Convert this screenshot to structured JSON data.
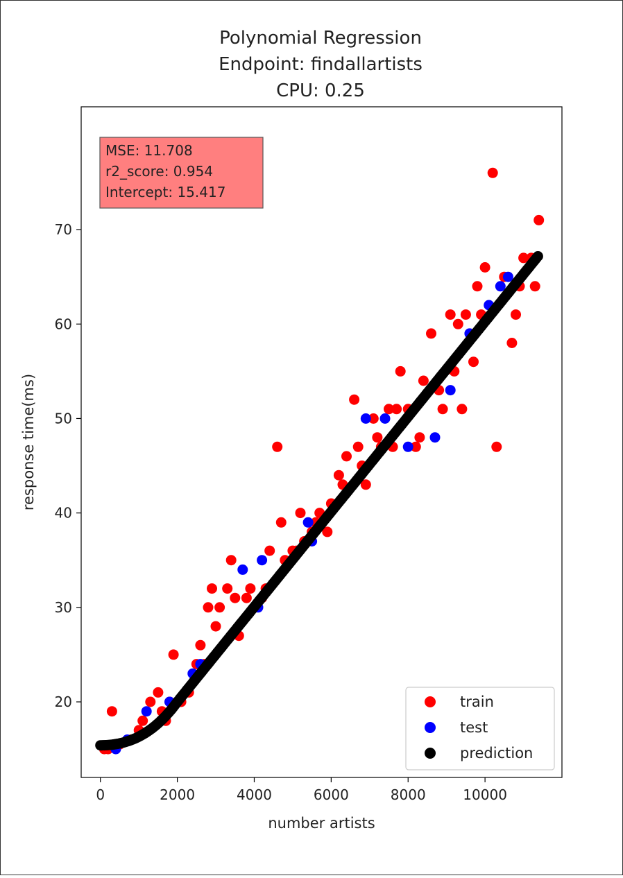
{
  "chart_data": {
    "type": "scatter",
    "title": [
      "Polynomial Regression",
      "Endpoint: findallartists",
      "CPU: 0.25"
    ],
    "xlabel": "number artists",
    "ylabel": "response time(ms)",
    "xlim": [
      -500,
      12000
    ],
    "ylim": [
      12,
      83
    ],
    "xticks": [
      0,
      2000,
      4000,
      6000,
      8000,
      10000
    ],
    "yticks": [
      20,
      30,
      40,
      50,
      60,
      70
    ],
    "grid": false,
    "legend_position": "lower right",
    "annotation": [
      "MSE: 11.708",
      "r2_score: 0.954",
      "Intercept: 15.417"
    ],
    "annotation_color": "#ff7f7f",
    "series": [
      {
        "name": "train",
        "color": "#ff0000",
        "points": [
          [
            100,
            15
          ],
          [
            200,
            15
          ],
          [
            300,
            19
          ],
          [
            500,
            15.5
          ],
          [
            800,
            16
          ],
          [
            1000,
            17
          ],
          [
            1100,
            18
          ],
          [
            1300,
            20
          ],
          [
            1500,
            21
          ],
          [
            1600,
            19
          ],
          [
            1700,
            18
          ],
          [
            1800,
            20
          ],
          [
            1900,
            25
          ],
          [
            2100,
            20
          ],
          [
            2300,
            21
          ],
          [
            2500,
            24
          ],
          [
            2600,
            26
          ],
          [
            2700,
            24
          ],
          [
            2800,
            30
          ],
          [
            2900,
            32
          ],
          [
            3000,
            28
          ],
          [
            3100,
            30
          ],
          [
            3300,
            32
          ],
          [
            3400,
            35
          ],
          [
            3500,
            31
          ],
          [
            3600,
            27
          ],
          [
            3800,
            31
          ],
          [
            3900,
            32
          ],
          [
            4200,
            31
          ],
          [
            4300,
            32
          ],
          [
            4400,
            36
          ],
          [
            4600,
            47
          ],
          [
            4700,
            39
          ],
          [
            4800,
            35
          ],
          [
            5000,
            36
          ],
          [
            5100,
            36
          ],
          [
            5200,
            40
          ],
          [
            5300,
            37
          ],
          [
            5500,
            38
          ],
          [
            5600,
            39
          ],
          [
            5700,
            40
          ],
          [
            5900,
            38
          ],
          [
            6000,
            41
          ],
          [
            6200,
            44
          ],
          [
            6300,
            43
          ],
          [
            6400,
            46
          ],
          [
            6600,
            52
          ],
          [
            6700,
            47
          ],
          [
            6800,
            45
          ],
          [
            6900,
            43
          ],
          [
            7100,
            50
          ],
          [
            7200,
            48
          ],
          [
            7300,
            47
          ],
          [
            7500,
            51
          ],
          [
            7600,
            47
          ],
          [
            7700,
            51
          ],
          [
            7800,
            55
          ],
          [
            8000,
            51
          ],
          [
            8200,
            47
          ],
          [
            8300,
            48
          ],
          [
            8400,
            54
          ],
          [
            8600,
            59
          ],
          [
            8800,
            53
          ],
          [
            8900,
            51
          ],
          [
            9100,
            61
          ],
          [
            9200,
            55
          ],
          [
            9300,
            60
          ],
          [
            9400,
            51
          ],
          [
            9500,
            61
          ],
          [
            9700,
            56
          ],
          [
            9800,
            64
          ],
          [
            9900,
            61
          ],
          [
            10000,
            66
          ],
          [
            10200,
            76
          ],
          [
            10300,
            47
          ],
          [
            10500,
            65
          ],
          [
            10700,
            58
          ],
          [
            10800,
            61
          ],
          [
            10900,
            64
          ],
          [
            11000,
            67
          ],
          [
            11200,
            67
          ],
          [
            11300,
            64
          ],
          [
            11400,
            71
          ]
        ]
      },
      {
        "name": "test",
        "color": "#0000ff",
        "points": [
          [
            400,
            15
          ],
          [
            700,
            16
          ],
          [
            1200,
            19
          ],
          [
            1800,
            20
          ],
          [
            2000,
            20
          ],
          [
            2400,
            23
          ],
          [
            2600,
            24
          ],
          [
            3700,
            34
          ],
          [
            4000,
            30
          ],
          [
            4100,
            30
          ],
          [
            4200,
            35
          ],
          [
            5400,
            39
          ],
          [
            5500,
            37
          ],
          [
            6900,
            50
          ],
          [
            7400,
            50
          ],
          [
            8000,
            47
          ],
          [
            8700,
            48
          ],
          [
            9100,
            53
          ],
          [
            9600,
            59
          ],
          [
            10100,
            62
          ],
          [
            10400,
            64
          ],
          [
            10600,
            65
          ]
        ]
      },
      {
        "name": "prediction",
        "color": "#000000",
        "model": "polynomial curve from 15.4 at x=0 to 67.3 at x=11400"
      }
    ]
  }
}
